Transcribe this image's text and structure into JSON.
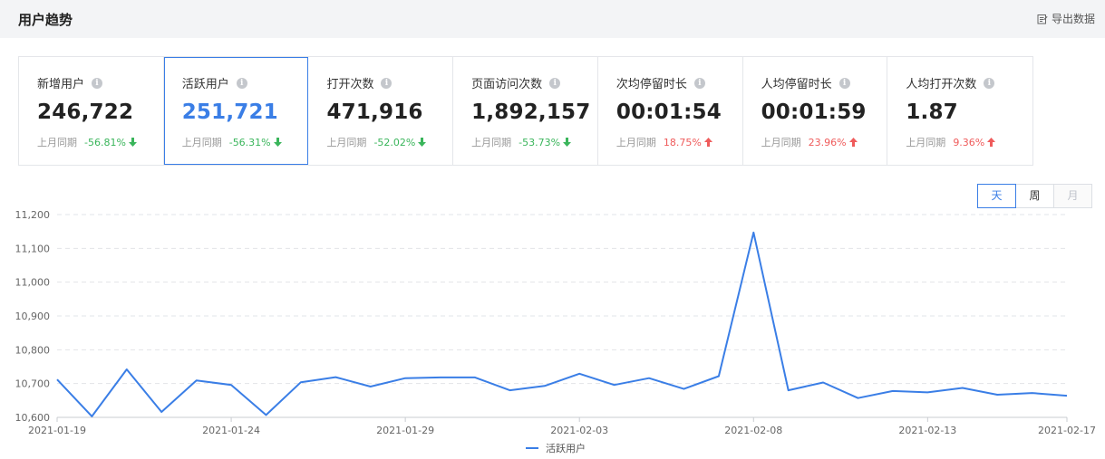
{
  "header": {
    "title": "用户趋势",
    "export_label": "导出数据"
  },
  "colors": {
    "accent": "#3a7ee6",
    "down": "#3ab55b",
    "up": "#ef5b5b",
    "grid": "#e2e4e8",
    "axis_text": "#666666"
  },
  "cards": [
    {
      "label": "新增用户",
      "value": "246,722",
      "compare_label": "上月同期",
      "pct": "-56.81%",
      "dir": "down"
    },
    {
      "label": "活跃用户",
      "value": "251,721",
      "compare_label": "上月同期",
      "pct": "-56.31%",
      "dir": "down"
    },
    {
      "label": "打开次数",
      "value": "471,916",
      "compare_label": "上月同期",
      "pct": "-52.02%",
      "dir": "down"
    },
    {
      "label": "页面访问次数",
      "value": "1,892,157",
      "compare_label": "上月同期",
      "pct": "-53.73%",
      "dir": "down"
    },
    {
      "label": "次均停留时长",
      "value": "00:01:54",
      "compare_label": "上月同期",
      "pct": "18.75%",
      "dir": "up"
    },
    {
      "label": "人均停留时长",
      "value": "00:01:59",
      "compare_label": "上月同期",
      "pct": "23.96%",
      "dir": "up"
    },
    {
      "label": "人均打开次数",
      "value": "1.87",
      "compare_label": "上月同期",
      "pct": "9.36%",
      "dir": "up"
    }
  ],
  "active_card": 1,
  "granularity": {
    "options": [
      "天",
      "周",
      "月"
    ],
    "selected": 0,
    "disabled": [
      2
    ]
  },
  "chart_data": {
    "type": "line",
    "x": [
      "2021-01-19",
      "2021-01-20",
      "2021-01-21",
      "2021-01-22",
      "2021-01-23",
      "2021-01-24",
      "2021-01-25",
      "2021-01-26",
      "2021-01-27",
      "2021-01-28",
      "2021-01-29",
      "2021-01-30",
      "2021-01-31",
      "2021-02-01",
      "2021-02-02",
      "2021-02-03",
      "2021-02-04",
      "2021-02-05",
      "2021-02-06",
      "2021-02-07",
      "2021-02-08",
      "2021-02-09",
      "2021-02-10",
      "2021-02-11",
      "2021-02-12",
      "2021-02-13",
      "2021-02-14",
      "2021-02-15",
      "2021-02-16",
      "2021-02-17"
    ],
    "xticks": [
      "2021-01-19",
      "2021-01-24",
      "2021-01-29",
      "2021-02-03",
      "2021-02-08",
      "2021-02-13",
      "2021-02-17"
    ],
    "series": [
      {
        "name": "活跃用户",
        "values": [
          10712,
          10603,
          10742,
          10616,
          10709,
          10696,
          10607,
          10704,
          10719,
          10691,
          10716,
          10718,
          10718,
          10680,
          10693,
          10729,
          10696,
          10716,
          10684,
          10722,
          11147,
          10680,
          10703,
          10657,
          10678,
          10674,
          10687,
          10667,
          10672,
          10664
        ]
      }
    ],
    "ylim": [
      10600,
      11200
    ],
    "yticks": [
      10600,
      10700,
      10800,
      10900,
      11000,
      11100,
      11200
    ],
    "ytick_labels": [
      "10,600",
      "10,700",
      "10,800",
      "10,900",
      "11,000",
      "11,100",
      "11,200"
    ],
    "grid": true,
    "legend": "bottom-center"
  }
}
